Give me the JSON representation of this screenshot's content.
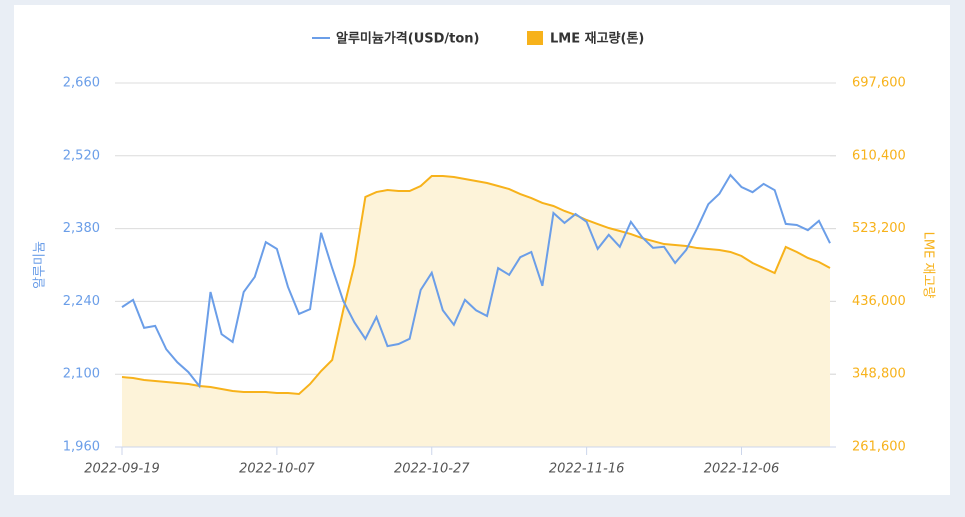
{
  "chart_data": {
    "type": "line",
    "categories": [
      "2022-09-19",
      null,
      null,
      null,
      null,
      null,
      null,
      null,
      null,
      null,
      null,
      null,
      null,
      null,
      "2022-10-07",
      null,
      null,
      null,
      null,
      null,
      null,
      null,
      null,
      null,
      null,
      null,
      null,
      null,
      "2022-10-27",
      null,
      null,
      null,
      null,
      null,
      null,
      null,
      null,
      null,
      null,
      null,
      null,
      null,
      "2022-11-16",
      null,
      null,
      null,
      null,
      null,
      null,
      null,
      null,
      null,
      null,
      null,
      null,
      null,
      "2022-12-06",
      null,
      null,
      null,
      null,
      null,
      null,
      null,
      null
    ],
    "series": [
      {
        "name": "알루미늄가격(USD/ton)",
        "color": "#6b9ee8",
        "values": [
          2229,
          2243,
          2189,
          2193,
          2148,
          2123,
          2104,
          2077,
          2258,
          2177,
          2162,
          2258,
          2287,
          2354,
          2341,
          2268,
          2216,
          2225,
          2372,
          2304,
          2241,
          2200,
          2168,
          2210,
          2154,
          2158,
          2168,
          2262,
          2295,
          2223,
          2195,
          2243,
          2223,
          2212,
          2304,
          2291,
          2325,
          2335,
          2270,
          2410,
          2391,
          2408,
          2393,
          2341,
          2368,
          2345,
          2393,
          2364,
          2343,
          2345,
          2314,
          2339,
          2381,
          2427,
          2447,
          2483,
          2460,
          2450,
          2466,
          2454,
          2389,
          2387,
          2377,
          2395,
          2352
        ]
      },
      {
        "name": "LME 재고량(톤)",
        "color": "#f7b21b",
        "fill": "#fdf3d9",
        "axis": "y2",
        "values": [
          345400,
          344200,
          341900,
          340700,
          339500,
          338300,
          337100,
          334700,
          333500,
          331100,
          328700,
          327500,
          327500,
          327500,
          326300,
          326300,
          325100,
          337100,
          352600,
          365800,
          425700,
          479600,
          561100,
          567000,
          569400,
          568200,
          568200,
          574200,
          586200,
          586200,
          585000,
          582600,
          580200,
          577800,
          574200,
          570600,
          564600,
          559800,
          553900,
          550300,
          544300,
          539500,
          533500,
          528700,
          523900,
          520300,
          516700,
          511900,
          508300,
          504700,
          503500,
          502300,
          499900,
          498800,
          497600,
          495200,
          490400,
          482000,
          476000,
          470000,
          501200,
          495200,
          488000,
          483200,
          476000
        ]
      }
    ],
    "y_label": "알루미늄",
    "y2_label": "LME 재고량",
    "ylim": [
      1960,
      2660
    ],
    "yticks": [
      {
        "value": 1960,
        "label": "1,960"
      },
      {
        "value": 2100,
        "label": "2,100"
      },
      {
        "value": 2240,
        "label": "2,240"
      },
      {
        "value": 2380,
        "label": "2,380"
      },
      {
        "value": 2520,
        "label": "2,520"
      },
      {
        "value": 2660,
        "label": "2,660"
      }
    ],
    "y2lim": [
      261600,
      697600
    ],
    "y2ticks": [
      {
        "value": 261600,
        "label": "261,600"
      },
      {
        "value": 348800,
        "label": "348,800"
      },
      {
        "value": 436000,
        "label": "436,000"
      },
      {
        "value": 523200,
        "label": "523,200"
      },
      {
        "value": 610400,
        "label": "610,400"
      },
      {
        "value": 697600,
        "label": "697,600"
      }
    ],
    "grid": true,
    "legend": "top"
  }
}
